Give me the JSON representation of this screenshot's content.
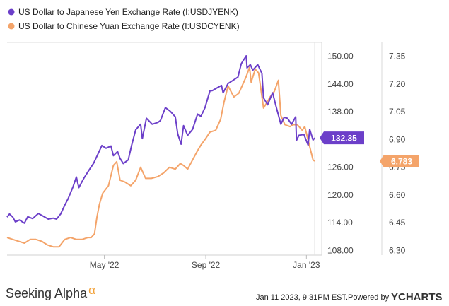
{
  "legend": [
    {
      "label": "US Dollar to Japanese Yen Exchange Rate (I:USDJYENK)",
      "color": "#6c3fc9"
    },
    {
      "label": "US Dollar to Chinese Yuan Exchange Rate (I:USDCYENK)",
      "color": "#f4a46a"
    }
  ],
  "footer": {
    "brand": "Seeking Alpha",
    "brand_mark": "α",
    "timestamp": "Jan 11 2023, 9:31PM EST.",
    "powered_by": "Powered by",
    "provider": "YCHARTS"
  },
  "chart_data": {
    "type": "line",
    "x_range": [
      "2022-01-03",
      "2023-01-11"
    ],
    "x_ticks": [
      {
        "label": "May '22",
        "date": "2022-05-01"
      },
      {
        "label": "Sep '22",
        "date": "2022-09-01"
      },
      {
        "label": "Jan '23",
        "date": "2023-01-01"
      }
    ],
    "left_axis": {
      "ylim": [
        107,
        153
      ],
      "ticks": [
        "150.00",
        "144.00",
        "138.00",
        "132.00",
        "126.00",
        "120.00",
        "114.00",
        "108.00"
      ],
      "values": [
        150,
        144,
        138,
        132,
        126,
        120,
        114,
        108
      ]
    },
    "right_axis": {
      "ylim": [
        6.275,
        7.425
      ],
      "ticks": [
        "7.35",
        "7.20",
        "7.05",
        "6.90",
        "6.75",
        "6.60",
        "6.45",
        "6.30"
      ],
      "values": [
        7.35,
        7.2,
        7.05,
        6.9,
        6.75,
        6.6,
        6.45,
        6.3
      ]
    },
    "grid": false,
    "legend_position": "top-left",
    "series": [
      {
        "name": "US Dollar to Japanese Yen Exchange Rate (I:USDJYENK)",
        "axis": "left",
        "color": "#6c3fc9",
        "last_value_label": "132.35",
        "points": [
          [
            "2022-01-03",
            115.2
          ],
          [
            "2022-01-06",
            115.9
          ],
          [
            "2022-01-10",
            115.2
          ],
          [
            "2022-01-13",
            114.2
          ],
          [
            "2022-01-18",
            114.6
          ],
          [
            "2022-01-24",
            113.9
          ],
          [
            "2022-01-28",
            115.3
          ],
          [
            "2022-02-03",
            114.9
          ],
          [
            "2022-02-10",
            116.0
          ],
          [
            "2022-02-16",
            115.4
          ],
          [
            "2022-02-22",
            114.8
          ],
          [
            "2022-02-28",
            115.0
          ],
          [
            "2022-03-04",
            114.8
          ],
          [
            "2022-03-09",
            115.9
          ],
          [
            "2022-03-14",
            117.8
          ],
          [
            "2022-03-18",
            119.2
          ],
          [
            "2022-03-24",
            121.8
          ],
          [
            "2022-03-28",
            123.9
          ],
          [
            "2022-03-31",
            121.6
          ],
          [
            "2022-04-06",
            123.6
          ],
          [
            "2022-04-12",
            125.3
          ],
          [
            "2022-04-18",
            126.9
          ],
          [
            "2022-04-22",
            128.4
          ],
          [
            "2022-04-28",
            130.7
          ],
          [
            "2022-05-03",
            130.1
          ],
          [
            "2022-05-09",
            130.6
          ],
          [
            "2022-05-12",
            128.5
          ],
          [
            "2022-05-17",
            129.4
          ],
          [
            "2022-05-20",
            127.9
          ],
          [
            "2022-05-24",
            126.8
          ],
          [
            "2022-05-30",
            127.6
          ],
          [
            "2022-06-03",
            130.7
          ],
          [
            "2022-06-08",
            134.1
          ],
          [
            "2022-06-14",
            135.3
          ],
          [
            "2022-06-16",
            132.2
          ],
          [
            "2022-06-21",
            136.6
          ],
          [
            "2022-06-28",
            135.3
          ],
          [
            "2022-07-05",
            135.7
          ],
          [
            "2022-07-08",
            136.1
          ],
          [
            "2022-07-14",
            138.9
          ],
          [
            "2022-07-20",
            138.1
          ],
          [
            "2022-07-26",
            136.9
          ],
          [
            "2022-07-29",
            133.2
          ],
          [
            "2022-08-02",
            131.0
          ],
          [
            "2022-08-05",
            135.0
          ],
          [
            "2022-08-10",
            132.9
          ],
          [
            "2022-08-16",
            134.2
          ],
          [
            "2022-08-22",
            137.5
          ],
          [
            "2022-08-26",
            137.0
          ],
          [
            "2022-08-31",
            138.9
          ],
          [
            "2022-09-06",
            142.5
          ],
          [
            "2022-09-09",
            142.6
          ],
          [
            "2022-09-14",
            143.1
          ],
          [
            "2022-09-20",
            143.7
          ],
          [
            "2022-09-22",
            142.1
          ],
          [
            "2022-09-28",
            144.1
          ],
          [
            "2022-10-04",
            144.8
          ],
          [
            "2022-10-10",
            145.5
          ],
          [
            "2022-10-14",
            148.4
          ],
          [
            "2022-10-20",
            150.1
          ],
          [
            "2022-10-21",
            147.5
          ],
          [
            "2022-10-25",
            148.2
          ],
          [
            "2022-10-28",
            147.0
          ],
          [
            "2022-11-03",
            148.2
          ],
          [
            "2022-11-08",
            146.3
          ],
          [
            "2022-11-10",
            141.0
          ],
          [
            "2022-11-15",
            139.5
          ],
          [
            "2022-11-21",
            142.1
          ],
          [
            "2022-11-25",
            139.3
          ],
          [
            "2022-12-01",
            135.3
          ],
          [
            "2022-12-05",
            136.8
          ],
          [
            "2022-12-09",
            136.6
          ],
          [
            "2022-12-14",
            135.3
          ],
          [
            "2022-12-19",
            136.9
          ],
          [
            "2022-12-20",
            131.8
          ],
          [
            "2022-12-23",
            132.9
          ],
          [
            "2022-12-29",
            133.1
          ],
          [
            "2023-01-03",
            130.8
          ],
          [
            "2023-01-05",
            134.2
          ],
          [
            "2023-01-09",
            131.9
          ],
          [
            "2023-01-11",
            132.35
          ]
        ]
      },
      {
        "name": "US Dollar to Chinese Yuan Exchange Rate (I:USDCYENK)",
        "axis": "right",
        "color": "#f4a46a",
        "last_value_label": "6.783",
        "points": [
          [
            "2022-01-03",
            6.37
          ],
          [
            "2022-01-10",
            6.36
          ],
          [
            "2022-01-17",
            6.35
          ],
          [
            "2022-01-24",
            6.34
          ],
          [
            "2022-01-31",
            6.36
          ],
          [
            "2022-02-07",
            6.36
          ],
          [
            "2022-02-14",
            6.35
          ],
          [
            "2022-02-21",
            6.33
          ],
          [
            "2022-02-28",
            6.32
          ],
          [
            "2022-03-07",
            6.32
          ],
          [
            "2022-03-14",
            6.36
          ],
          [
            "2022-03-21",
            6.37
          ],
          [
            "2022-03-28",
            6.36
          ],
          [
            "2022-04-04",
            6.36
          ],
          [
            "2022-04-11",
            6.37
          ],
          [
            "2022-04-15",
            6.37
          ],
          [
            "2022-04-19",
            6.39
          ],
          [
            "2022-04-22",
            6.48
          ],
          [
            "2022-04-25",
            6.55
          ],
          [
            "2022-04-29",
            6.61
          ],
          [
            "2022-05-06",
            6.65
          ],
          [
            "2022-05-12",
            6.76
          ],
          [
            "2022-05-16",
            6.78
          ],
          [
            "2022-05-20",
            6.68
          ],
          [
            "2022-05-26",
            6.67
          ],
          [
            "2022-06-02",
            6.65
          ],
          [
            "2022-06-08",
            6.68
          ],
          [
            "2022-06-14",
            6.75
          ],
          [
            "2022-06-20",
            6.69
          ],
          [
            "2022-06-27",
            6.69
          ],
          [
            "2022-07-05",
            6.7
          ],
          [
            "2022-07-12",
            6.72
          ],
          [
            "2022-07-19",
            6.75
          ],
          [
            "2022-07-26",
            6.74
          ],
          [
            "2022-08-01",
            6.77
          ],
          [
            "2022-08-05",
            6.76
          ],
          [
            "2022-08-10",
            6.74
          ],
          [
            "2022-08-16",
            6.79
          ],
          [
            "2022-08-22",
            6.84
          ],
          [
            "2022-08-26",
            6.87
          ],
          [
            "2022-08-31",
            6.9
          ],
          [
            "2022-09-06",
            6.94
          ],
          [
            "2022-09-13",
            6.95
          ],
          [
            "2022-09-19",
            7.01
          ],
          [
            "2022-09-23",
            7.1
          ],
          [
            "2022-09-28",
            7.19
          ],
          [
            "2022-10-05",
            7.13
          ],
          [
            "2022-10-11",
            7.15
          ],
          [
            "2022-10-17",
            7.21
          ],
          [
            "2022-10-20",
            7.24
          ],
          [
            "2022-10-24",
            7.29
          ],
          [
            "2022-10-26",
            7.21
          ],
          [
            "2022-10-31",
            7.28
          ],
          [
            "2022-11-04",
            7.26
          ],
          [
            "2022-11-10",
            7.07
          ],
          [
            "2022-11-14",
            7.1
          ],
          [
            "2022-11-18",
            7.13
          ],
          [
            "2022-11-23",
            7.16
          ],
          [
            "2022-11-28",
            7.22
          ],
          [
            "2022-12-01",
            7.03
          ],
          [
            "2022-12-06",
            6.98
          ],
          [
            "2022-12-12",
            6.97
          ],
          [
            "2022-12-16",
            6.98
          ],
          [
            "2022-12-21",
            6.98
          ],
          [
            "2022-12-27",
            6.95
          ],
          [
            "2022-12-30",
            6.97
          ],
          [
            "2023-01-04",
            6.88
          ],
          [
            "2023-01-09",
            6.79
          ],
          [
            "2023-01-11",
            6.783
          ]
        ]
      }
    ]
  }
}
